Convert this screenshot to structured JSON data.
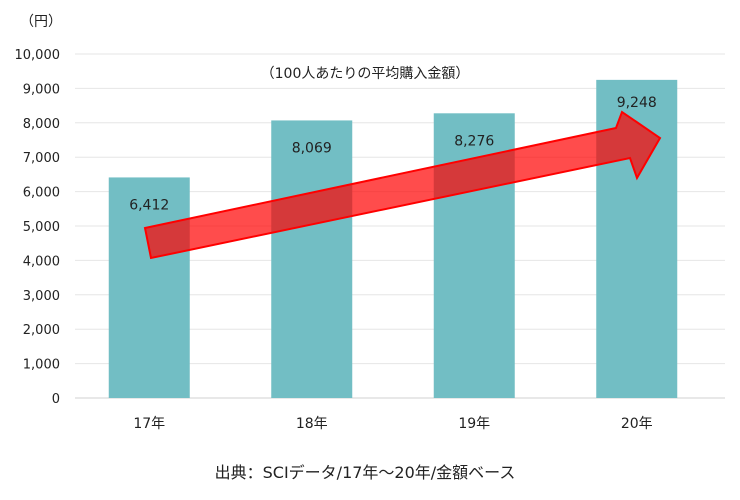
{
  "chart_data": {
    "type": "bar",
    "unit_label": "（円）",
    "subtitle": "（100人あたりの平均購入金額）",
    "source": "出典：SCIデータ/17年～20年/金額ベース",
    "categories": [
      "17年",
      "18年",
      "19年",
      "20年"
    ],
    "values": [
      6412,
      8069,
      8276,
      9248
    ],
    "data_labels": [
      "6,412",
      "8,069",
      "8,276",
      "9,248"
    ],
    "highlight_label_color": "#ff0000",
    "ylim": [
      0,
      10000
    ],
    "yticks": [
      "0",
      "1,000",
      "2,000",
      "3,000",
      "4,000",
      "5,000",
      "6,000",
      "7,000",
      "8,000",
      "9,000",
      "10,000"
    ],
    "grid": true,
    "bar_color": "#72bec4",
    "arrow_color": "#ff0000",
    "annotation": "trend-up-arrow"
  }
}
